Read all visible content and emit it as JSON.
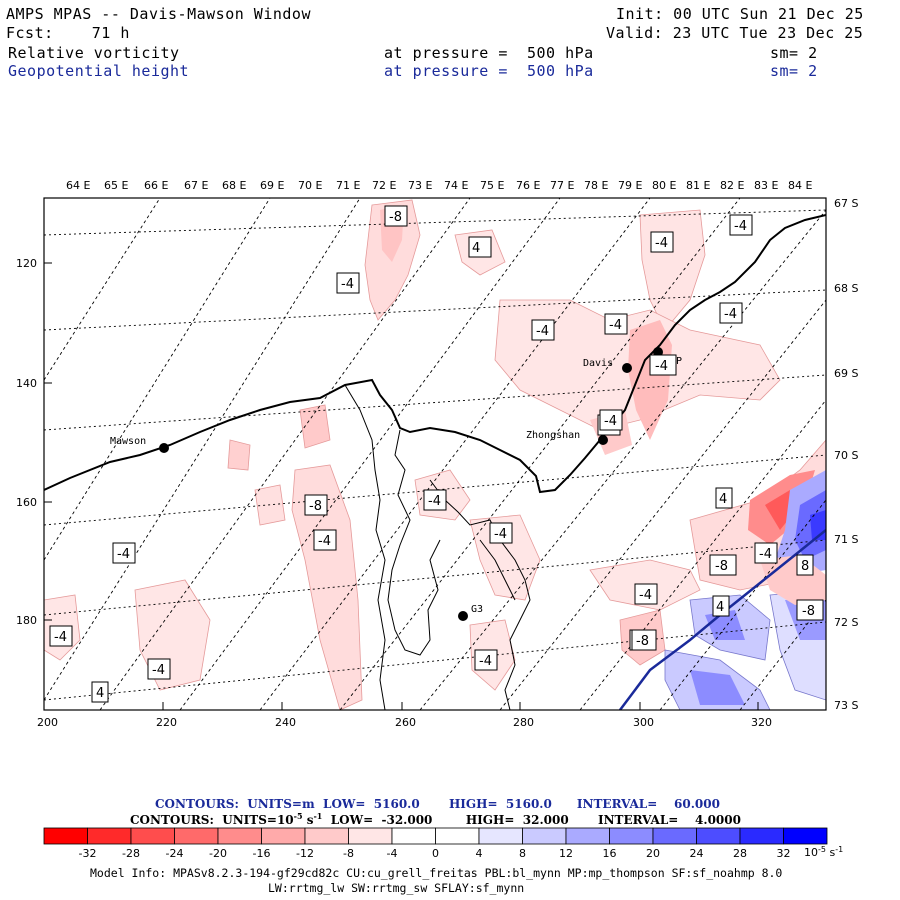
{
  "header": {
    "title": "AMPS MPAS -- Davis-Mawson Window",
    "init": "Init: 00 UTC Sun 21 Dec 25",
    "fcst": "Fcst:    71 h",
    "valid": "Valid: 23 UTC Tue 23 Dec 25",
    "field1": {
      "name": "Relative vorticity",
      "level": "at pressure =  500 hPa",
      "sm": "sm= 2"
    },
    "field2": {
      "name": "Geopotential height",
      "level": "at pressure =  500 hPa",
      "sm": "sm= 2"
    }
  },
  "map": {
    "lon_labels": [
      "64 E",
      "65 E",
      "66 E",
      "67 E",
      "68 E",
      "69 E",
      "70 E",
      "71 E",
      "72 E",
      "73 E",
      "74 E",
      "75 E",
      "76 E",
      "77 E",
      "78 E",
      "79 E",
      "80 E",
      "81 E",
      "82 E",
      "83 E",
      "84 E"
    ],
    "lat_labels": [
      "67 S",
      "68 S",
      "69 S",
      "70 S",
      "71 S",
      "72 S",
      "73 S"
    ],
    "x_ticks": [
      "200",
      "220",
      "240",
      "260",
      "280",
      "300",
      "320"
    ],
    "y_ticks": [
      "120",
      "140",
      "160",
      "180"
    ],
    "stations": [
      {
        "name": "Mawson"
      },
      {
        "name": "Davis"
      },
      {
        "name": "WHP"
      },
      {
        "name": "Zhongshan"
      },
      {
        "name": "G3"
      }
    ],
    "contour_labels": [
      "-8",
      "4",
      "-4",
      "-4",
      "-4",
      "-4",
      "-4",
      "-4",
      "-4",
      "-4",
      "-4",
      "-4",
      "-8",
      "-4",
      "-4",
      "-4",
      "4",
      "-4",
      "-4",
      "-4",
      "-4",
      "-8",
      "8",
      "-4",
      "4",
      "-8",
      "-8",
      "4",
      "-4"
    ]
  },
  "info": {
    "line1": {
      "contours": "CONTOURS:  UNITS=m",
      "low": "LOW=  5160.0",
      "high": "HIGH=  5160.0",
      "interval": "INTERVAL=    60.000"
    },
    "line2": {
      "contours": "CONTOURS:  UNITS=10",
      "exp": "-5",
      "unit": " s",
      "exp2": "-1",
      "low": "LOW=  -32.000",
      "high": "HIGH=  32.000",
      "interval": "INTERVAL=    4.0000"
    }
  },
  "colorbar": {
    "ticks": [
      "-32",
      "-28",
      "-24",
      "-20",
      "-16",
      "-12",
      "-8",
      "-4",
      "0",
      "4",
      "8",
      "12",
      "16",
      "20",
      "24",
      "28",
      "32"
    ],
    "unit_base": "10",
    "unit_exp": "-5",
    "unit_s": " s",
    "unit_exp2": "-1",
    "colors": [
      "#ff0000",
      "#ff2a2a",
      "#ff4d4d",
      "#ff6a6a",
      "#ff8c8c",
      "#ffaaaa",
      "#ffcaca",
      "#ffe6e6",
      "#ffffff",
      "#ffffff",
      "#e6e6ff",
      "#cacaff",
      "#aaaaff",
      "#8c8cff",
      "#6a6aff",
      "#4d4dff",
      "#2a2aff",
      "#0000ff"
    ]
  },
  "model_info": {
    "line1": "Model Info: MPASv8.2.3-194-gf29cd82c CU:cu_grell_freitas PBL:bl_mynn MP:mp_thompson SF:sf_noahmp 8.0",
    "line2": "LW:rrtmg_lw SW:rrtmg_sw SFLAY:sf_mynn"
  }
}
